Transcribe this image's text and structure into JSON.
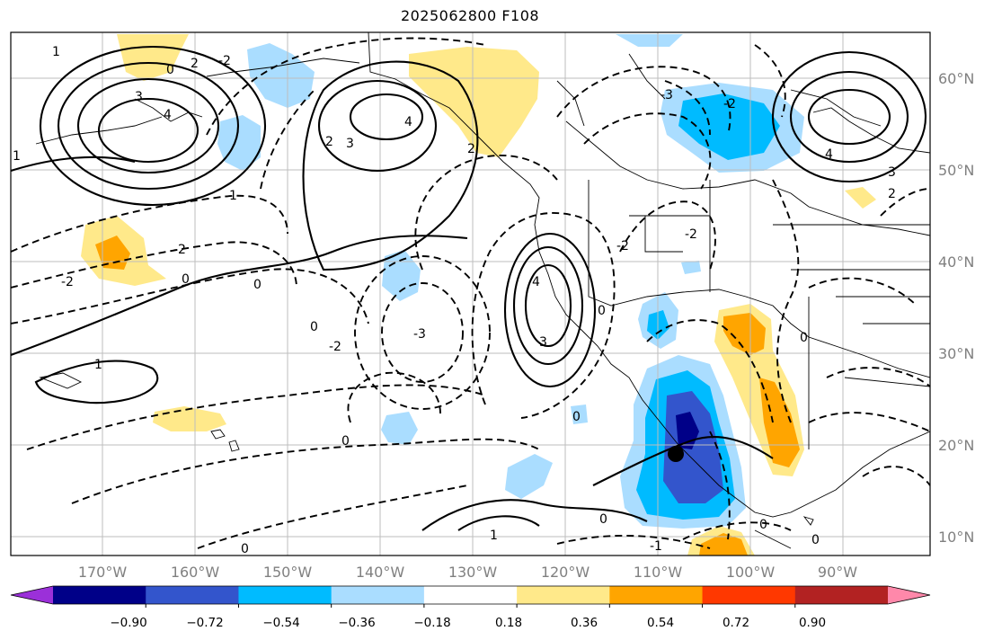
{
  "title": "2025062800 F108",
  "lon_labels": [
    "170°W",
    "160°W",
    "150°W",
    "140°W",
    "130°W",
    "120°W",
    "110°W",
    "100°W",
    "90°W"
  ],
  "lat_labels": [
    "60°N",
    "50°N",
    "40°N",
    "30°N",
    "20°N",
    "10°N"
  ],
  "colorbar": {
    "colors": [
      "#9b30d9",
      "#000088",
      "#3355cc",
      "#00bbff",
      "#aaddff",
      "#ffffff",
      "#ffe98a",
      "#ffa500",
      "#ff3800",
      "#b22222",
      "#ff88aa"
    ],
    "tick_labels": [
      "−0.90",
      "−0.72",
      "−0.54",
      "−0.36",
      "−0.18",
      "0.18",
      "0.36",
      "0.54",
      "0.72",
      "0.90"
    ]
  },
  "contour_labels": [
    "1",
    "2",
    "3",
    "4",
    "-1",
    "-2",
    "-3",
    "0"
  ],
  "marker": "storm-center"
}
